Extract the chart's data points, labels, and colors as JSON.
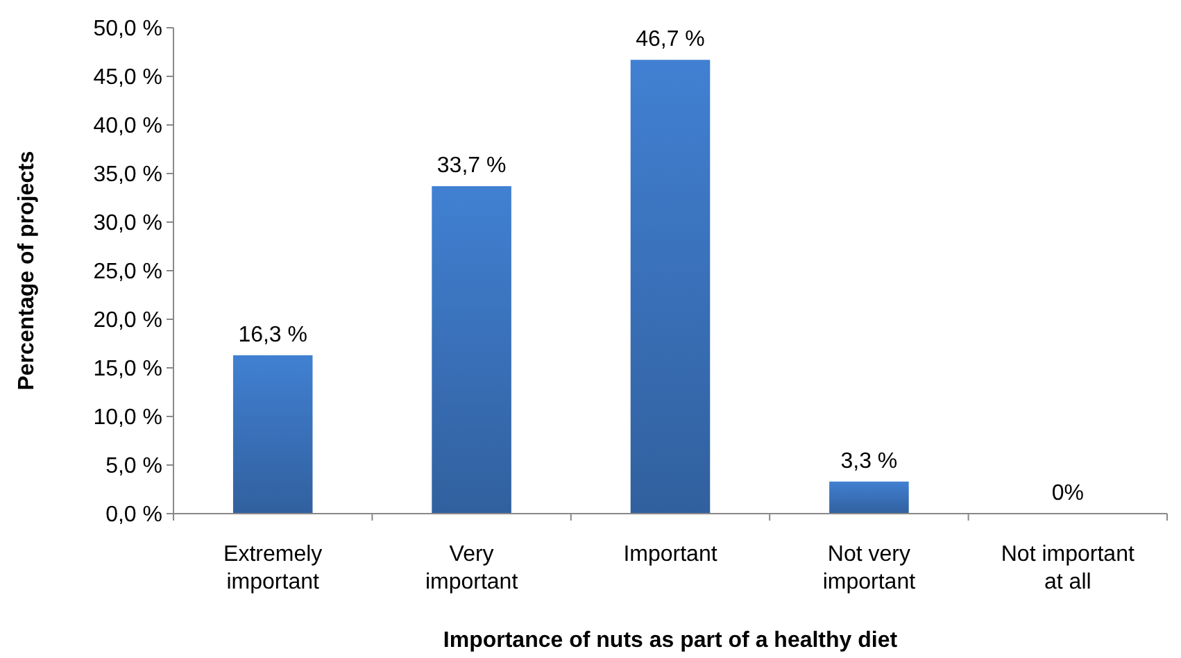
{
  "chart_data": {
    "type": "bar",
    "xlabel": "Importance of nuts as part of a healthy diet",
    "ylabel": "Percentage of projects",
    "categories": [
      "Extremely important",
      "Very important",
      "Important",
      "Not very important",
      "Not important at all"
    ],
    "values": [
      16.3,
      33.7,
      46.7,
      3.3,
      0
    ],
    "value_labels": [
      "16,3 %",
      "33,7 %",
      "46,7 %",
      "3,3 %",
      "0%"
    ],
    "color": "#3a73bd",
    "ylim": [
      0,
      50
    ],
    "yticks": [
      {
        "value": 0,
        "label": "0,0 %"
      },
      {
        "value": 5,
        "label": "5,0 %"
      },
      {
        "value": 10,
        "label": "10,0 %"
      },
      {
        "value": 15,
        "label": "15,0 %"
      },
      {
        "value": 20,
        "label": "20,0 %"
      },
      {
        "value": 25,
        "label": "25,0 %"
      },
      {
        "value": 30,
        "label": "30,0 %"
      },
      {
        "value": 35,
        "label": "35,0 %"
      },
      {
        "value": 40,
        "label": "40,0 %"
      },
      {
        "value": 45,
        "label": "45,0 %"
      },
      {
        "value": 50,
        "label": "50,0 %"
      }
    ],
    "grid": false
  }
}
